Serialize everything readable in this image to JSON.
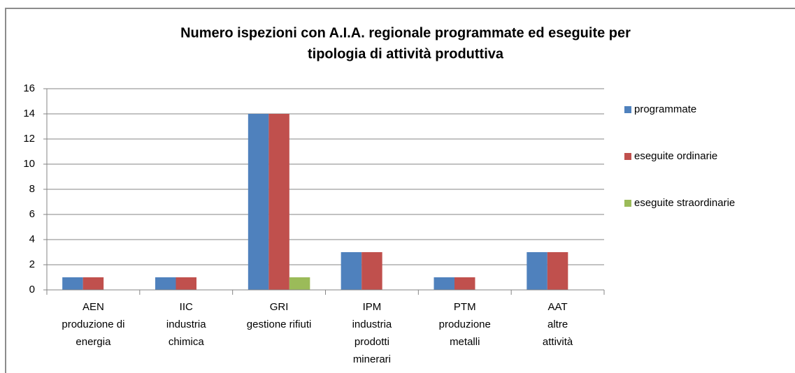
{
  "chart_data": {
    "type": "bar",
    "title": [
      "Numero ispezioni con A.I.A. regionale programmate ed eseguite per",
      "tipologia di attività produttiva"
    ],
    "categories": [
      [
        "AEN",
        "produzione di",
        "energia"
      ],
      [
        "IIC",
        "industria",
        "chimica"
      ],
      [
        "GRI",
        "gestione rifiuti"
      ],
      [
        "IPM",
        "industria",
        "prodotti",
        "minerari"
      ],
      [
        "PTM",
        "produzione",
        "metalli"
      ],
      [
        "AAT",
        "altre",
        "attività"
      ]
    ],
    "series": [
      {
        "name": "programmate",
        "color": "#4f81bd",
        "values": [
          1,
          1,
          14,
          3,
          1,
          3
        ]
      },
      {
        "name": "eseguite ordinarie",
        "color": "#c0504d",
        "values": [
          1,
          1,
          14,
          3,
          1,
          3
        ]
      },
      {
        "name": "eseguite straordinarie",
        "color": "#9bbb59",
        "values": [
          0,
          0,
          1,
          0,
          0,
          0
        ]
      }
    ],
    "ylim": [
      0,
      16
    ],
    "yticks": [
      0,
      2,
      4,
      6,
      8,
      10,
      12,
      14,
      16
    ],
    "grid": true,
    "legend": "right"
  }
}
